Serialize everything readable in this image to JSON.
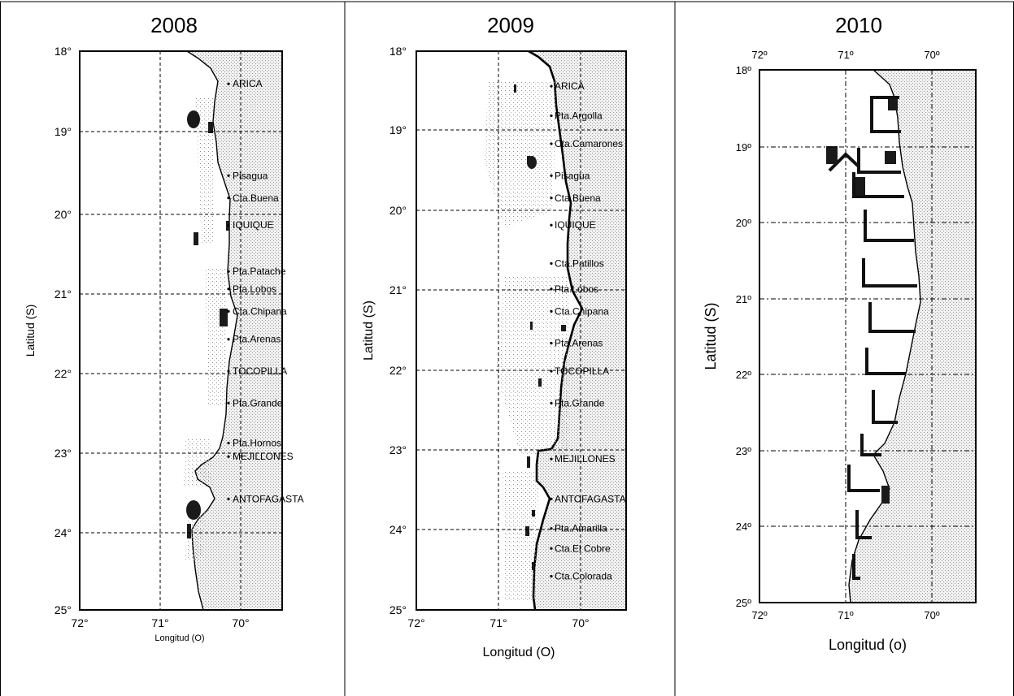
{
  "panels": [
    {
      "id": "2008",
      "title": "2008",
      "ylabel": "Latitud (S)",
      "xlabel": "Longitud (O)",
      "lat_ticks": [
        "18°",
        "19°",
        "20°",
        "21°",
        "22°",
        "23°",
        "24°",
        "25°"
      ],
      "lon_ticks": [
        "72°",
        "71°",
        "70°"
      ],
      "places": [
        {
          "name": "ARICA",
          "lat": 18.45
        },
        {
          "name": "Pisagua",
          "lat": 19.6
        },
        {
          "name": "Cta.Buena",
          "lat": 19.88
        },
        {
          "name": "IQUIQUE",
          "lat": 20.22
        },
        {
          "name": "Pta.Patache",
          "lat": 20.8
        },
        {
          "name": "Pta.Lobos",
          "lat": 21.02
        },
        {
          "name": "Cta.Chipana",
          "lat": 21.3
        },
        {
          "name": "Pta.Arenas",
          "lat": 21.65
        },
        {
          "name": "TOCOPILLA",
          "lat": 22.05
        },
        {
          "name": "Pta.Grande",
          "lat": 22.45
        },
        {
          "name": "Pta.Hornos",
          "lat": 22.95
        },
        {
          "name": "MEJILLONES",
          "lat": 23.12
        },
        {
          "name": "ANTOFAGASTA",
          "lat": 23.65
        }
      ]
    },
    {
      "id": "2009",
      "title": "2009",
      "ylabel": "Latitud (S)",
      "xlabel": "Longitud (O)",
      "lat_ticks": [
        "18°",
        "19°",
        "20°",
        "21°",
        "22°",
        "23°",
        "24°",
        "25°"
      ],
      "lon_ticks": [
        "72°",
        "71°",
        "70°"
      ],
      "places": [
        {
          "name": "ARICA",
          "lat": 18.48
        },
        {
          "name": "Pta.Argolla",
          "lat": 18.85
        },
        {
          "name": "Cta.Camarones",
          "lat": 19.2
        },
        {
          "name": "Pisagua",
          "lat": 19.6
        },
        {
          "name": "Cta.Buena",
          "lat": 19.88
        },
        {
          "name": "IQUIQUE",
          "lat": 20.22
        },
        {
          "name": "Cta.Patillos",
          "lat": 20.7
        },
        {
          "name": "Pta.Lobos",
          "lat": 21.02
        },
        {
          "name": "Cta.Chipana",
          "lat": 21.3
        },
        {
          "name": "Pta.Arenas",
          "lat": 21.7
        },
        {
          "name": "TOCOPILLA",
          "lat": 22.05
        },
        {
          "name": "Pta.Grande",
          "lat": 22.45
        },
        {
          "name": "MEJILLONES",
          "lat": 23.15
        },
        {
          "name": "ANTOFAGASTA",
          "lat": 23.65
        },
        {
          "name": "Pta.Amarilla",
          "lat": 24.02
        },
        {
          "name": "Cta.El Cobre",
          "lat": 24.27
        },
        {
          "name": "Cta.Colorada",
          "lat": 24.62
        }
      ]
    },
    {
      "id": "2010",
      "title": "2010",
      "ylabel": "Latitud (S)",
      "xlabel": "Longitud (o)",
      "lat_ticks": [
        "18º",
        "19º",
        "20º",
        "21º",
        "22º",
        "23º",
        "24º",
        "25º"
      ],
      "lon_ticks": [
        "72º",
        "71º",
        "70º"
      ],
      "top_lon_ticks": [
        "72º",
        "71º",
        "70º"
      ],
      "places": []
    }
  ]
}
